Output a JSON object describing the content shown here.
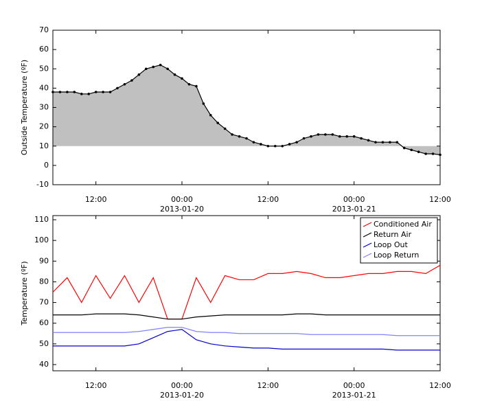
{
  "chart_data": [
    {
      "type": "area",
      "ylabel": "Outside Temperature (ºF)",
      "color": "#000000",
      "fill_color": "#c0c0c0",
      "fill_to": 10,
      "markers": true,
      "x": [
        "2013-01-19 06:00",
        "2013-01-19 07:00",
        "2013-01-19 08:00",
        "2013-01-19 09:00",
        "2013-01-19 10:00",
        "2013-01-19 11:00",
        "2013-01-19 12:00",
        "2013-01-19 13:00",
        "2013-01-19 14:00",
        "2013-01-19 15:00",
        "2013-01-19 16:00",
        "2013-01-19 17:00",
        "2013-01-19 18:00",
        "2013-01-19 19:00",
        "2013-01-19 20:00",
        "2013-01-19 21:00",
        "2013-01-19 22:00",
        "2013-01-19 23:00",
        "2013-01-20 00:00",
        "2013-01-20 01:00",
        "2013-01-20 02:00",
        "2013-01-20 03:00",
        "2013-01-20 04:00",
        "2013-01-20 05:00",
        "2013-01-20 06:00",
        "2013-01-20 07:00",
        "2013-01-20 08:00",
        "2013-01-20 09:00",
        "2013-01-20 10:00",
        "2013-01-20 11:00",
        "2013-01-20 12:00",
        "2013-01-20 13:00",
        "2013-01-20 14:00",
        "2013-01-20 15:00",
        "2013-01-20 16:00",
        "2013-01-20 17:00",
        "2013-01-20 18:00",
        "2013-01-20 19:00",
        "2013-01-20 20:00",
        "2013-01-20 21:00",
        "2013-01-20 22:00",
        "2013-01-20 23:00",
        "2013-01-21 00:00",
        "2013-01-21 01:00",
        "2013-01-21 02:00",
        "2013-01-21 03:00",
        "2013-01-21 04:00",
        "2013-01-21 05:00",
        "2013-01-21 06:00",
        "2013-01-21 07:00",
        "2013-01-21 08:00",
        "2013-01-21 09:00",
        "2013-01-21 10:00",
        "2013-01-21 11:00",
        "2013-01-21 12:00"
      ],
      "values": [
        38,
        38,
        38,
        38,
        37,
        37,
        38,
        38,
        38,
        40,
        42,
        44,
        47,
        50,
        51,
        52,
        50,
        47,
        45,
        42,
        41,
        32,
        26,
        22,
        19,
        16,
        15,
        14,
        12,
        11,
        10,
        10,
        10,
        11,
        12,
        14,
        15,
        16,
        16,
        16,
        15,
        15,
        15,
        14,
        13,
        12,
        12,
        12,
        12,
        9,
        8,
        7,
        6,
        6,
        5.5
      ],
      "xlim": [
        "2013-01-19 06:00",
        "2013-01-21 12:00"
      ],
      "xticks": [
        {
          "value": "2013-01-19 12:00",
          "label": "12:00"
        },
        {
          "value": "2013-01-20 00:00",
          "label": "00:00",
          "sublabel": "2013-01-20"
        },
        {
          "value": "2013-01-20 12:00",
          "label": "12:00"
        },
        {
          "value": "2013-01-21 00:00",
          "label": "00:00",
          "sublabel": "2013-01-21"
        },
        {
          "value": "2013-01-21 12:00",
          "label": "12:00"
        }
      ],
      "ylim": [
        -10,
        70
      ],
      "yticks": [
        -10,
        0,
        10,
        20,
        30,
        40,
        50,
        60,
        70
      ]
    },
    {
      "type": "line",
      "ylabel": "Temperature (ºF)",
      "legend": "upper right",
      "x": [
        "2013-01-19 06:00",
        "2013-01-19 08:00",
        "2013-01-19 10:00",
        "2013-01-19 12:00",
        "2013-01-19 14:00",
        "2013-01-19 16:00",
        "2013-01-19 18:00",
        "2013-01-19 20:00",
        "2013-01-19 22:00",
        "2013-01-20 00:00",
        "2013-01-20 02:00",
        "2013-01-20 04:00",
        "2013-01-20 06:00",
        "2013-01-20 08:00",
        "2013-01-20 10:00",
        "2013-01-20 12:00",
        "2013-01-20 14:00",
        "2013-01-20 16:00",
        "2013-01-20 18:00",
        "2013-01-20 20:00",
        "2013-01-20 22:00",
        "2013-01-21 00:00",
        "2013-01-21 02:00",
        "2013-01-21 04:00",
        "2013-01-21 06:00",
        "2013-01-21 08:00",
        "2013-01-21 10:00",
        "2013-01-21 12:00"
      ],
      "series": [
        {
          "name": "Conditioned Air",
          "color": "#ff0000",
          "values": [
            75,
            82,
            70,
            83,
            72,
            83,
            70,
            82,
            62,
            62,
            82,
            70,
            83,
            81,
            81,
            84,
            84,
            85,
            84,
            82,
            82,
            83,
            84,
            84,
            85,
            85,
            84,
            88
          ]
        },
        {
          "name": "Return Air",
          "color": "#000000",
          "values": [
            64,
            64,
            64,
            64.5,
            64.5,
            64.5,
            64,
            63,
            62,
            62,
            63,
            63.5,
            64,
            64,
            64,
            64,
            64,
            64.5,
            64.5,
            64,
            64,
            64,
            64,
            64,
            64,
            64,
            64,
            64
          ]
        },
        {
          "name": "Loop Out",
          "color": "#0000cc",
          "values": [
            49,
            49,
            49,
            49,
            49,
            49,
            50,
            53,
            56,
            57,
            52,
            50,
            49,
            48.5,
            48,
            48,
            47.5,
            47.5,
            47.5,
            47.5,
            47.5,
            47.5,
            47.5,
            47.5,
            47,
            47,
            47,
            47
          ]
        },
        {
          "name": "Loop Return",
          "color": "#8080ff",
          "values": [
            55.5,
            55.5,
            55.5,
            55.5,
            55.5,
            55.5,
            56,
            57,
            58,
            58,
            56,
            55.5,
            55.5,
            55,
            55,
            55,
            55,
            55,
            54.5,
            54.5,
            54.5,
            54.5,
            54.5,
            54.5,
            54,
            54,
            54,
            54
          ]
        }
      ],
      "xlim": [
        "2013-01-19 06:00",
        "2013-01-21 12:00"
      ],
      "xticks": [
        {
          "value": "2013-01-19 12:00",
          "label": "12:00"
        },
        {
          "value": "2013-01-20 00:00",
          "label": "00:00",
          "sublabel": "2013-01-20"
        },
        {
          "value": "2013-01-20 12:00",
          "label": "12:00"
        },
        {
          "value": "2013-01-21 00:00",
          "label": "00:00",
          "sublabel": "2013-01-21"
        },
        {
          "value": "2013-01-21 12:00",
          "label": "12:00"
        }
      ],
      "ylim": [
        37,
        112
      ],
      "yticks": [
        40,
        50,
        60,
        70,
        80,
        90,
        100,
        110
      ]
    }
  ]
}
